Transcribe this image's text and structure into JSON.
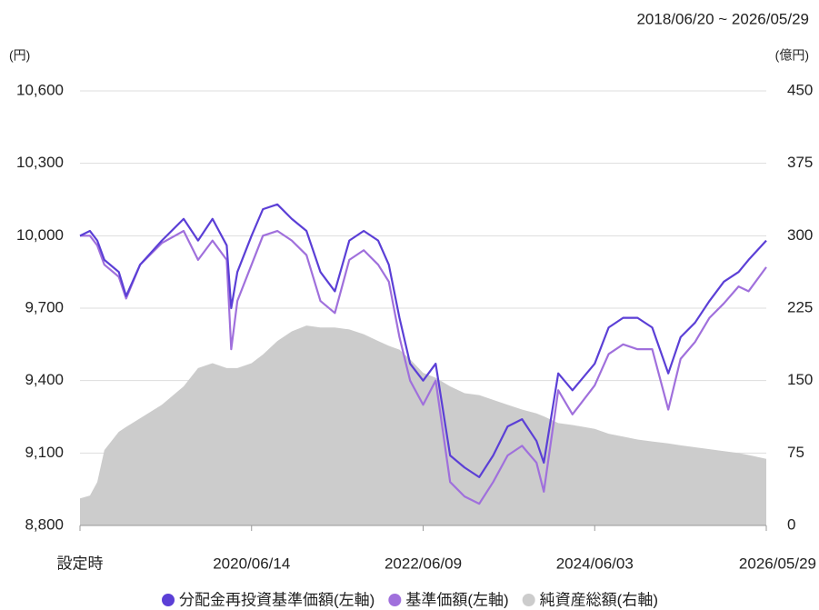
{
  "chart_data": {
    "type": "line",
    "period": "2018/06/20 ~ 2026/05/29",
    "y_label": "(円)",
    "y2_label": "(億円)",
    "x": [
      "2018/06/20",
      "2018/08/01",
      "2018/09/01",
      "2018/10/01",
      "2018/12/01",
      "2019/01/01",
      "2019/03/01",
      "2019/06/01",
      "2019/09/01",
      "2019/11/01",
      "2020/01/01",
      "2020/03/01",
      "2020/03/20",
      "2020/04/15",
      "2020/06/14",
      "2020/08/01",
      "2020/10/01",
      "2020/12/01",
      "2021/02/01",
      "2021/04/01",
      "2021/06/01",
      "2021/08/01",
      "2021/10/01",
      "2021/12/01",
      "2022/01/15",
      "2022/03/01",
      "2022/04/15",
      "2022/06/09",
      "2022/08/01",
      "2022/10/01",
      "2022/12/01",
      "2023/02/01",
      "2023/04/01",
      "2023/06/01",
      "2023/08/01",
      "2023/10/01",
      "2023/11/01",
      "2024/01/01",
      "2024/03/01",
      "2024/06/03",
      "2024/08/01",
      "2024/10/01",
      "2024/12/01",
      "2025/02/01",
      "2025/04/10",
      "2025/06/01",
      "2025/08/01",
      "2025/10/01",
      "2025/12/01",
      "2026/02/01",
      "2026/03/15",
      "2026/05/29"
    ],
    "xlim": [
      "2018/06/20",
      "2026/05/29"
    ],
    "xticks": [
      {
        "value": "2018/06/20",
        "label": "設定時"
      },
      "2020/06/14",
      "2022/06/09",
      "2024/06/03",
      "2026/05/29"
    ],
    "ylim": [
      8800,
      10600
    ],
    "yticks": [
      {
        "value": 8800,
        "label": "8,800"
      },
      {
        "value": 9100,
        "label": "9,100"
      },
      {
        "value": 9400,
        "label": "9,400"
      },
      {
        "value": 9700,
        "label": "9,700"
      },
      {
        "value": 10000,
        "label": "10,000"
      },
      {
        "value": 10300,
        "label": "10,300"
      },
      {
        "value": 10600,
        "label": "10,600"
      }
    ],
    "y2lim": [
      0,
      450
    ],
    "y2ticks": [
      0,
      75,
      150,
      225,
      300,
      375,
      450
    ],
    "grid": true,
    "series": [
      {
        "name": "純資産総額(右軸)",
        "color": "#cccccc",
        "type": "area",
        "axis": "y2",
        "values": [
          28,
          31,
          45,
          78,
          97,
          102,
          111,
          125,
          144,
          163,
          168,
          163,
          163,
          163,
          168,
          177,
          191,
          201,
          207,
          205,
          205,
          203,
          198,
          191,
          186,
          182,
          172,
          158,
          153,
          144,
          137,
          135,
          130,
          125,
          120,
          116,
          113,
          106,
          104,
          100,
          95,
          92,
          89,
          87,
          85,
          83,
          81,
          79,
          77,
          75,
          73,
          69
        ]
      },
      {
        "name": "基準価額(左軸)",
        "color": "#a070dc",
        "type": "line",
        "values": [
          10000,
          10000,
          9960,
          9880,
          9830,
          9740,
          9880,
          9970,
          10020,
          9900,
          9980,
          9900,
          9530,
          9730,
          9880,
          10000,
          10020,
          9980,
          9920,
          9730,
          9680,
          9900,
          9940,
          9880,
          9810,
          9580,
          9400,
          9300,
          9400,
          8980,
          8920,
          8890,
          8980,
          9090,
          9130,
          9060,
          8940,
          9360,
          9260,
          9380,
          9510,
          9550,
          9530,
          9530,
          9280,
          9490,
          9560,
          9660,
          9720,
          9790,
          9770,
          9870
        ]
      },
      {
        "name": "分配金再投資基準価額(左軸)",
        "color": "#5b3fd6",
        "type": "line",
        "values": [
          10000,
          10020,
          9980,
          9900,
          9850,
          9750,
          9880,
          9980,
          10070,
          9980,
          10070,
          9960,
          9700,
          9850,
          10000,
          10110,
          10130,
          10070,
          10020,
          9850,
          9770,
          9980,
          10020,
          9980,
          9880,
          9660,
          9470,
          9400,
          9470,
          9090,
          9040,
          9000,
          9090,
          9210,
          9240,
          9150,
          9060,
          9430,
          9360,
          9470,
          9620,
          9660,
          9660,
          9620,
          9430,
          9580,
          9640,
          9730,
          9810,
          9850,
          9900,
          9980
        ]
      }
    ],
    "legend_order": [
      2,
      1,
      0
    ]
  }
}
